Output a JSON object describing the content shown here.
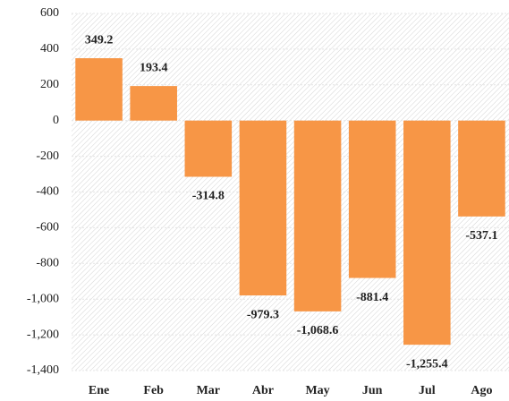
{
  "chart_data": {
    "type": "bar",
    "categories": [
      "Ene",
      "Feb",
      "Mar",
      "Abr",
      "May",
      "Jun",
      "Jul",
      "Ago"
    ],
    "values": [
      349.2,
      193.4,
      -314.8,
      -979.3,
      -1068.6,
      -881.4,
      -1255.4,
      -537.1
    ],
    "value_labels": [
      "349.2",
      "193.4",
      "-314.8",
      "-979.3",
      "-1,068.6",
      "-881.4",
      "-1,255.4",
      "-537.1"
    ],
    "color": "#f79646",
    "ylim": [
      -1400,
      600
    ],
    "yticks": [
      600,
      400,
      200,
      0,
      -200,
      -400,
      -600,
      -800,
      {
        "value": -1000,
        "label": "-1,000"
      },
      {
        "value": -1200,
        "label": "-1,200"
      },
      {
        "value": -1400,
        "label": "-1,400"
      }
    ],
    "grid": true
  }
}
